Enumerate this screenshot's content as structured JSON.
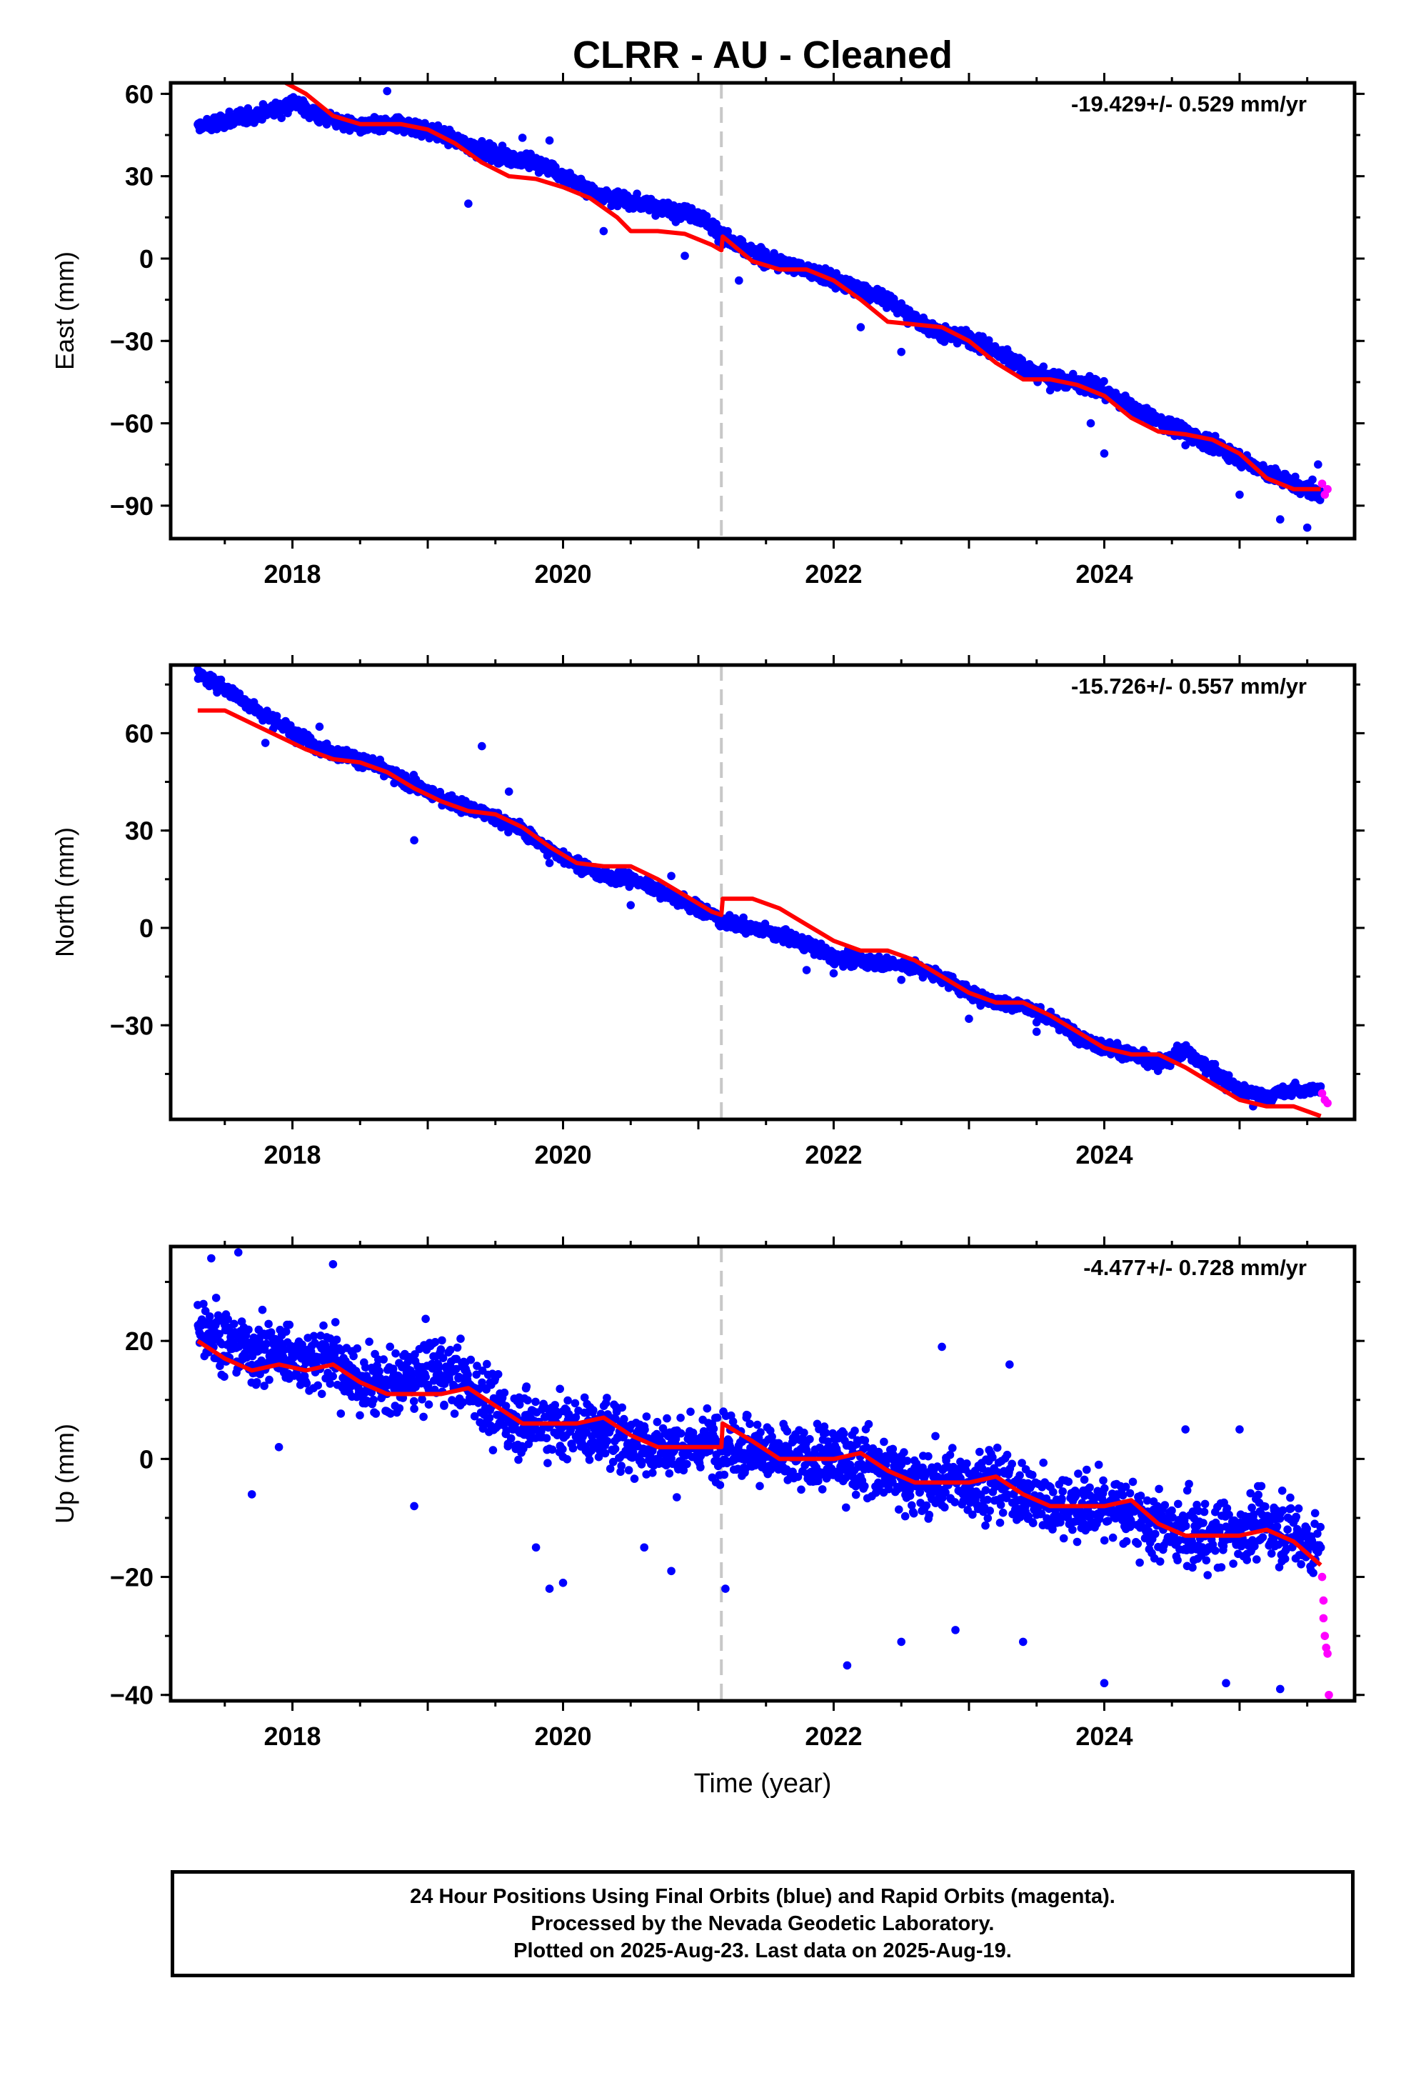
{
  "title": "CLRR  - AU - Cleaned",
  "caption": {
    "line1": "24 Hour Positions Using Final Orbits (blue) and Rapid Orbits (magenta).",
    "line2": "Processed by the Nevada Geodetic Laboratory.",
    "line3": "Plotted on 2025-Aug-23. Last data on 2025-Aug-19."
  },
  "colors": {
    "final_orbits": "#0000ff",
    "rapid_orbits": "#ff00ff",
    "model": "#ff0000",
    "reference_line": "#c8c8c8",
    "axes": "#000000"
  },
  "chart_data": [
    {
      "type": "scatter",
      "name": "east",
      "ylabel": "East (mm)",
      "xlabel": "",
      "xlim": [
        2017.1,
        2025.85
      ],
      "ylim": [
        -102,
        64
      ],
      "yticks": [
        60,
        30,
        0,
        -30,
        -60,
        -90
      ],
      "xticks": [
        2018,
        2020,
        2022,
        2024
      ],
      "annotation": "-19.429+/- 0.529 mm/yr",
      "reference_line_x": 2021.17,
      "scatter_spread": 3.5,
      "final_orbits": [
        [
          2017.3,
          48
        ],
        [
          2017.5,
          50
        ],
        [
          2017.7,
          52
        ],
        [
          2017.9,
          55
        ],
        [
          2018.0,
          57
        ],
        [
          2018.2,
          52
        ],
        [
          2018.5,
          48
        ],
        [
          2018.8,
          49
        ],
        [
          2019.0,
          47
        ],
        [
          2019.2,
          43
        ],
        [
          2019.5,
          38
        ],
        [
          2019.8,
          35
        ],
        [
          2020.0,
          30
        ],
        [
          2020.2,
          25
        ],
        [
          2020.4,
          22
        ],
        [
          2020.6,
          20
        ],
        [
          2020.8,
          18
        ],
        [
          2021.0,
          16
        ],
        [
          2021.17,
          9
        ],
        [
          2021.3,
          4
        ],
        [
          2021.5,
          0
        ],
        [
          2021.8,
          -4
        ],
        [
          2022.1,
          -10
        ],
        [
          2022.4,
          -15
        ],
        [
          2022.6,
          -22
        ],
        [
          2022.8,
          -27
        ],
        [
          2023.0,
          -29
        ],
        [
          2023.3,
          -36
        ],
        [
          2023.5,
          -42
        ],
        [
          2023.8,
          -45
        ],
        [
          2024.0,
          -48
        ],
        [
          2024.3,
          -57
        ],
        [
          2024.6,
          -63
        ],
        [
          2024.9,
          -70
        ],
        [
          2025.2,
          -78
        ],
        [
          2025.5,
          -84
        ],
        [
          2025.6,
          -85
        ]
      ],
      "rapid_orbits": [
        [
          2025.61,
          -82
        ],
        [
          2025.63,
          -86
        ],
        [
          2025.65,
          -84
        ]
      ],
      "model": [
        [
          2017.95,
          64
        ],
        [
          2018.1,
          60
        ],
        [
          2018.3,
          52
        ],
        [
          2018.5,
          49
        ],
        [
          2018.8,
          49
        ],
        [
          2019.0,
          47
        ],
        [
          2019.2,
          42
        ],
        [
          2019.4,
          35
        ],
        [
          2019.6,
          30
        ],
        [
          2019.8,
          29
        ],
        [
          2020.0,
          26
        ],
        [
          2020.2,
          22
        ],
        [
          2020.4,
          15
        ],
        [
          2020.5,
          10
        ],
        [
          2020.7,
          10
        ],
        [
          2020.9,
          9
        ],
        [
          2021.1,
          5
        ],
        [
          2021.17,
          3
        ],
        [
          2021.18,
          8
        ],
        [
          2021.4,
          -1
        ],
        [
          2021.6,
          -4
        ],
        [
          2021.8,
          -4
        ],
        [
          2022.0,
          -8
        ],
        [
          2022.2,
          -15
        ],
        [
          2022.4,
          -23
        ],
        [
          2022.6,
          -24
        ],
        [
          2022.8,
          -25
        ],
        [
          2023.0,
          -30
        ],
        [
          2023.2,
          -38
        ],
        [
          2023.4,
          -44
        ],
        [
          2023.6,
          -44
        ],
        [
          2023.8,
          -46
        ],
        [
          2024.0,
          -50
        ],
        [
          2024.2,
          -58
        ],
        [
          2024.4,
          -63
        ],
        [
          2024.6,
          -64
        ],
        [
          2024.8,
          -66
        ],
        [
          2025.0,
          -71
        ],
        [
          2025.2,
          -80
        ],
        [
          2025.4,
          -84
        ],
        [
          2025.6,
          -84
        ]
      ],
      "outliers": [
        [
          2018.7,
          61
        ],
        [
          2019.7,
          44
        ],
        [
          2019.9,
          43
        ],
        [
          2019.3,
          20
        ],
        [
          2020.3,
          10
        ],
        [
          2020.9,
          1
        ],
        [
          2021.3,
          -8
        ],
        [
          2022.2,
          -25
        ],
        [
          2022.5,
          -34
        ],
        [
          2023.6,
          -48
        ],
        [
          2023.9,
          -60
        ],
        [
          2024.0,
          -71
        ],
        [
          2024.6,
          -68
        ],
        [
          2025.0,
          -86
        ],
        [
          2025.3,
          -95
        ],
        [
          2025.5,
          -98
        ],
        [
          2025.58,
          -75
        ]
      ]
    },
    {
      "type": "scatter",
      "name": "north",
      "ylabel": "North (mm)",
      "xlabel": "",
      "xlim": [
        2017.1,
        2025.85
      ],
      "ylim": [
        -59,
        81
      ],
      "yticks": [
        60,
        30,
        0,
        -30
      ],
      "xticks": [
        2018,
        2020,
        2022,
        2024
      ],
      "annotation": "-15.726+/- 0.557 mm/yr",
      "reference_line_x": 2021.17,
      "scatter_spread": 2.5,
      "final_orbits": [
        [
          2017.3,
          78
        ],
        [
          2017.5,
          74
        ],
        [
          2017.7,
          68
        ],
        [
          2017.9,
          63
        ],
        [
          2018.1,
          58
        ],
        [
          2018.3,
          54
        ],
        [
          2018.5,
          52
        ],
        [
          2018.7,
          48
        ],
        [
          2018.9,
          44
        ],
        [
          2019.1,
          40
        ],
        [
          2019.3,
          37
        ],
        [
          2019.5,
          34
        ],
        [
          2019.7,
          30
        ],
        [
          2019.9,
          24
        ],
        [
          2020.1,
          20
        ],
        [
          2020.3,
          16
        ],
        [
          2020.5,
          15
        ],
        [
          2020.7,
          12
        ],
        [
          2020.9,
          8
        ],
        [
          2021.1,
          4
        ],
        [
          2021.17,
          2
        ],
        [
          2021.4,
          0
        ],
        [
          2021.6,
          -2
        ],
        [
          2021.8,
          -5
        ],
        [
          2022.0,
          -9
        ],
        [
          2022.2,
          -10
        ],
        [
          2022.4,
          -11
        ],
        [
          2022.6,
          -12
        ],
        [
          2022.8,
          -15
        ],
        [
          2023.0,
          -20
        ],
        [
          2023.2,
          -23
        ],
        [
          2023.4,
          -24
        ],
        [
          2023.6,
          -28
        ],
        [
          2023.8,
          -33
        ],
        [
          2024.0,
          -37
        ],
        [
          2024.2,
          -39
        ],
        [
          2024.4,
          -42
        ],
        [
          2024.6,
          -38
        ],
        [
          2024.8,
          -44
        ],
        [
          2025.0,
          -50
        ],
        [
          2025.2,
          -52
        ],
        [
          2025.4,
          -50
        ],
        [
          2025.6,
          -50
        ]
      ],
      "rapid_orbits": [
        [
          2025.61,
          -51
        ],
        [
          2025.63,
          -53
        ],
        [
          2025.65,
          -54
        ]
      ],
      "model": [
        [
          2017.3,
          67
        ],
        [
          2017.5,
          67
        ],
        [
          2017.7,
          63
        ],
        [
          2017.9,
          59
        ],
        [
          2018.1,
          55
        ],
        [
          2018.3,
          52
        ],
        [
          2018.5,
          51
        ],
        [
          2018.7,
          48
        ],
        [
          2018.9,
          43
        ],
        [
          2019.1,
          39
        ],
        [
          2019.3,
          36
        ],
        [
          2019.5,
          35
        ],
        [
          2019.7,
          31
        ],
        [
          2019.9,
          25
        ],
        [
          2020.1,
          20
        ],
        [
          2020.3,
          19
        ],
        [
          2020.5,
          19
        ],
        [
          2020.7,
          15
        ],
        [
          2020.9,
          10
        ],
        [
          2021.1,
          5
        ],
        [
          2021.17,
          4
        ],
        [
          2021.18,
          9
        ],
        [
          2021.4,
          9
        ],
        [
          2021.6,
          6
        ],
        [
          2021.8,
          1
        ],
        [
          2022.0,
          -4
        ],
        [
          2022.2,
          -7
        ],
        [
          2022.4,
          -7
        ],
        [
          2022.6,
          -10
        ],
        [
          2022.8,
          -15
        ],
        [
          2023.0,
          -20
        ],
        [
          2023.2,
          -23
        ],
        [
          2023.4,
          -23
        ],
        [
          2023.6,
          -27
        ],
        [
          2023.8,
          -32
        ],
        [
          2024.0,
          -37
        ],
        [
          2024.2,
          -39
        ],
        [
          2024.4,
          -39
        ],
        [
          2024.6,
          -43
        ],
        [
          2024.8,
          -48
        ],
        [
          2025.0,
          -53
        ],
        [
          2025.2,
          -55
        ],
        [
          2025.4,
          -55
        ],
        [
          2025.6,
          -58
        ]
      ],
      "outliers": [
        [
          2017.8,
          57
        ],
        [
          2018.2,
          62
        ],
        [
          2018.9,
          27
        ],
        [
          2019.4,
          56
        ],
        [
          2019.6,
          42
        ],
        [
          2019.9,
          20
        ],
        [
          2020.5,
          7
        ],
        [
          2020.8,
          16
        ],
        [
          2021.6,
          -3
        ],
        [
          2021.8,
          -13
        ],
        [
          2022.0,
          -14
        ],
        [
          2022.5,
          -16
        ],
        [
          2023.0,
          -28
        ],
        [
          2023.5,
          -32
        ],
        [
          2024.3,
          -42
        ],
        [
          2024.9,
          -50
        ],
        [
          2025.1,
          -55
        ]
      ]
    },
    {
      "type": "scatter",
      "name": "up",
      "ylabel": "Up (mm)",
      "xlabel": "Time (year)",
      "xlim": [
        2017.1,
        2025.85
      ],
      "ylim": [
        -41,
        36
      ],
      "yticks": [
        20,
        0,
        -20,
        -40
      ],
      "xticks": [
        2018,
        2020,
        2022,
        2024
      ],
      "annotation": "-4.477+/- 0.728 mm/yr",
      "reference_line_x": 2021.17,
      "scatter_spread": 7,
      "final_orbits": [
        [
          2017.3,
          24
        ],
        [
          2017.5,
          20
        ],
        [
          2017.7,
          18
        ],
        [
          2017.9,
          18
        ],
        [
          2018.1,
          17
        ],
        [
          2018.3,
          17
        ],
        [
          2018.5,
          13
        ],
        [
          2018.7,
          12
        ],
        [
          2018.9,
          14
        ],
        [
          2019.1,
          15
        ],
        [
          2019.3,
          13
        ],
        [
          2019.5,
          8
        ],
        [
          2019.7,
          6
        ],
        [
          2019.9,
          6
        ],
        [
          2020.1,
          5
        ],
        [
          2020.3,
          5
        ],
        [
          2020.5,
          3
        ],
        [
          2020.7,
          2
        ],
        [
          2020.9,
          2
        ],
        [
          2021.1,
          3
        ],
        [
          2021.17,
          3
        ],
        [
          2021.4,
          2
        ],
        [
          2021.6,
          0
        ],
        [
          2021.8,
          0
        ],
        [
          2022.0,
          0
        ],
        [
          2022.2,
          0
        ],
        [
          2022.4,
          -2
        ],
        [
          2022.6,
          -4
        ],
        [
          2022.8,
          -4
        ],
        [
          2023.0,
          -4
        ],
        [
          2023.2,
          -4
        ],
        [
          2023.4,
          -6
        ],
        [
          2023.6,
          -8
        ],
        [
          2023.8,
          -8
        ],
        [
          2024.0,
          -8
        ],
        [
          2024.2,
          -9
        ],
        [
          2024.4,
          -12
        ],
        [
          2024.6,
          -13
        ],
        [
          2024.8,
          -13
        ],
        [
          2025.0,
          -12
        ],
        [
          2025.2,
          -11
        ],
        [
          2025.4,
          -13
        ],
        [
          2025.6,
          -15
        ]
      ],
      "rapid_orbits": [
        [
          2025.61,
          -20
        ],
        [
          2025.62,
          -24
        ],
        [
          2025.62,
          -27
        ],
        [
          2025.63,
          -30
        ],
        [
          2025.64,
          -32
        ],
        [
          2025.65,
          -33
        ],
        [
          2025.66,
          -40
        ]
      ],
      "model": [
        [
          2017.3,
          20
        ],
        [
          2017.5,
          17
        ],
        [
          2017.7,
          15
        ],
        [
          2017.9,
          16
        ],
        [
          2018.1,
          15
        ],
        [
          2018.3,
          16
        ],
        [
          2018.5,
          13
        ],
        [
          2018.7,
          11
        ],
        [
          2018.9,
          11
        ],
        [
          2019.1,
          11
        ],
        [
          2019.3,
          12
        ],
        [
          2019.5,
          9
        ],
        [
          2019.7,
          6
        ],
        [
          2019.9,
          6
        ],
        [
          2020.1,
          6
        ],
        [
          2020.3,
          7
        ],
        [
          2020.5,
          4
        ],
        [
          2020.7,
          2
        ],
        [
          2020.9,
          2
        ],
        [
          2021.1,
          2
        ],
        [
          2021.17,
          2
        ],
        [
          2021.18,
          6
        ],
        [
          2021.4,
          3
        ],
        [
          2021.6,
          0
        ],
        [
          2021.8,
          0
        ],
        [
          2022.0,
          0
        ],
        [
          2022.2,
          1
        ],
        [
          2022.4,
          -2
        ],
        [
          2022.6,
          -4
        ],
        [
          2022.8,
          -4
        ],
        [
          2023.0,
          -4
        ],
        [
          2023.2,
          -3
        ],
        [
          2023.4,
          -6
        ],
        [
          2023.6,
          -8
        ],
        [
          2023.8,
          -8
        ],
        [
          2024.0,
          -8
        ],
        [
          2024.2,
          -7
        ],
        [
          2024.4,
          -11
        ],
        [
          2024.6,
          -13
        ],
        [
          2024.8,
          -13
        ],
        [
          2025.0,
          -13
        ],
        [
          2025.2,
          -12
        ],
        [
          2025.4,
          -14
        ],
        [
          2025.6,
          -18
        ]
      ],
      "outliers": [
        [
          2017.4,
          34
        ],
        [
          2017.6,
          35
        ],
        [
          2017.7,
          -6
        ],
        [
          2018.3,
          33
        ],
        [
          2017.9,
          2
        ],
        [
          2018.9,
          -8
        ],
        [
          2019.9,
          -22
        ],
        [
          2020.0,
          -21
        ],
        [
          2019.8,
          -15
        ],
        [
          2020.6,
          -15
        ],
        [
          2020.8,
          -19
        ],
        [
          2021.2,
          -22
        ],
        [
          2022.1,
          -35
        ],
        [
          2022.5,
          -31
        ],
        [
          2022.9,
          -29
        ],
        [
          2022.8,
          19
        ],
        [
          2023.4,
          -31
        ],
        [
          2023.3,
          16
        ],
        [
          2024.0,
          -38
        ],
        [
          2024.6,
          5
        ],
        [
          2024.9,
          -38
        ],
        [
          2025.0,
          5
        ],
        [
          2025.3,
          -39
        ]
      ]
    }
  ]
}
